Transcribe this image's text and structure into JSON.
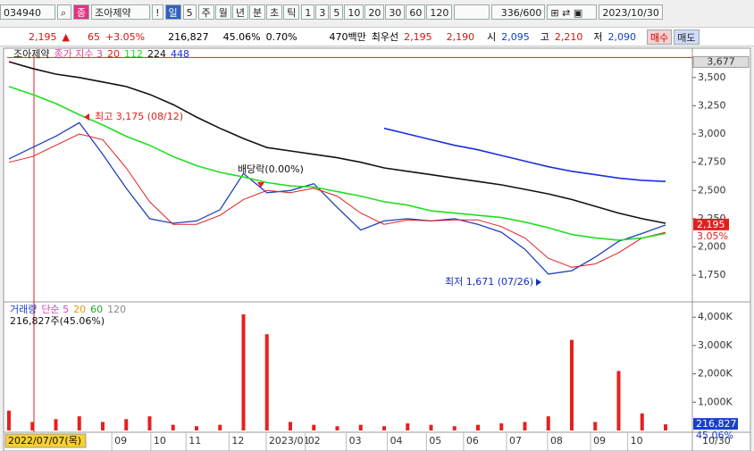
{
  "toolbar": {
    "code": "034940",
    "badge": "종",
    "name": "조아제약",
    "alert": "!",
    "period": "일",
    "period_count": "5",
    "tabs": [
      "주",
      "월",
      "년",
      "분",
      "초",
      "틱"
    ],
    "intervals": [
      "1",
      "3",
      "5",
      "10",
      "20",
      "30",
      "60",
      "120"
    ],
    "count": "336/600",
    "date": "2023/10/30"
  },
  "quote": {
    "price": "2,195",
    "arrow": "▲",
    "change": "65",
    "change_pct": "+3.05%",
    "volume": "216,827",
    "volume_ratio": "45.06%",
    "turnover": "0.70%",
    "trade_value": "470백만",
    "best_label": "최우선",
    "ask": "2,195",
    "bid": "2,190",
    "open_label": "시",
    "open": "2,095",
    "high_label": "고",
    "high": "2,210",
    "low_label": "저",
    "low": "2,090",
    "buy": "매수",
    "sell": "매도"
  },
  "chart_data": [
    {
      "type": "line",
      "title": "조아제약",
      "ma_label": "종가 지수 3",
      "x": [
        0,
        12,
        24,
        36,
        48,
        60,
        72,
        84,
        96,
        108,
        120,
        132,
        144,
        156,
        168,
        180,
        192,
        204,
        216,
        228,
        240,
        252,
        264,
        276,
        288,
        300,
        312,
        324,
        336
      ],
      "xlim": [
        0,
        336
      ],
      "series": [
        {
          "name": "조아제약",
          "color": "#2040c0",
          "values": [
            2780,
            2880,
            2980,
            3100,
            2820,
            2520,
            2250,
            2210,
            2230,
            2330,
            2650,
            2480,
            2500,
            2560,
            2350,
            2150,
            2230,
            2250,
            2230,
            2250,
            2200,
            2130,
            1980,
            1760,
            1790,
            1910,
            2050,
            2120,
            2195
          ]
        },
        {
          "name": "20",
          "color": "#e02020",
          "values": [
            2750,
            2800,
            2900,
            3000,
            2950,
            2700,
            2400,
            2200,
            2200,
            2280,
            2420,
            2500,
            2480,
            2520,
            2450,
            2300,
            2200,
            2240,
            2230,
            2240,
            2240,
            2180,
            2080,
            1900,
            1820,
            1850,
            1950,
            2080,
            2130
          ]
        },
        {
          "name": "112",
          "color": "#22dd22",
          "values": [
            3420,
            3350,
            3270,
            3170,
            3080,
            2980,
            2900,
            2800,
            2720,
            2660,
            2620,
            2570,
            2540,
            2530,
            2490,
            2450,
            2400,
            2370,
            2320,
            2300,
            2280,
            2260,
            2220,
            2170,
            2110,
            2080,
            2060,
            2080,
            2120
          ]
        },
        {
          "name": "224",
          "color": "#111111",
          "values": [
            3640,
            3580,
            3530,
            3500,
            3460,
            3420,
            3350,
            3260,
            3150,
            3050,
            2960,
            2880,
            2850,
            2820,
            2790,
            2750,
            2700,
            2670,
            2640,
            2610,
            2580,
            2550,
            2510,
            2470,
            2420,
            2360,
            2300,
            2250,
            2210
          ]
        },
        {
          "name": "448",
          "color": "#1a2ee0",
          "values": [
            null,
            null,
            null,
            null,
            null,
            null,
            null,
            null,
            null,
            null,
            null,
            null,
            null,
            null,
            null,
            null,
            3050,
            3000,
            2950,
            2900,
            2860,
            2810,
            2760,
            2710,
            2670,
            2640,
            2610,
            2590,
            2580
          ]
        }
      ],
      "ylim": [
        1530,
        3680
      ],
      "yticks": [
        {
          "value": 1750,
          "label": "1,750"
        },
        {
          "value": 2000,
          "label": "2,000"
        },
        {
          "value": 2250,
          "label": "2,250"
        },
        {
          "value": 2500,
          "label": "2,500"
        },
        {
          "value": 2750,
          "label": "2,750"
        },
        {
          "value": 3000,
          "label": "3,000"
        },
        {
          "value": 3250,
          "label": "3,250"
        },
        {
          "value": 3500,
          "label": "3,500"
        }
      ],
      "grid": false,
      "top_marker": {
        "value": 3677,
        "label": "3,677"
      },
      "last_marker": {
        "value": 2195,
        "label": "2,195"
      },
      "last_change": "3.05%",
      "annotations": [
        "최고 3,175 (08/12)",
        "배당락(0.00%)",
        "최저 1,671 (07/26)"
      ]
    },
    {
      "type": "bar",
      "title": "거래량",
      "legend": [
        {
          "label": "단순 5",
          "color": "#e040c0"
        },
        {
          "label": "20",
          "color": "#e0a000"
        },
        {
          "label": "60",
          "color": "#22aa22"
        },
        {
          "label": "120",
          "color": "#888888"
        }
      ],
      "subtitle": "216,827주(45.06%)",
      "x": [
        0,
        12,
        24,
        36,
        48,
        60,
        72,
        84,
        96,
        108,
        120,
        132,
        144,
        156,
        168,
        180,
        192,
        204,
        216,
        228,
        240,
        252,
        264,
        276,
        288,
        300,
        312,
        324,
        336
      ],
      "xlim": [
        0,
        336
      ],
      "color": "#e8201c",
      "values": [
        700000,
        300000,
        400000,
        500000,
        300000,
        400000,
        500000,
        200000,
        150000,
        200000,
        4100000,
        3400000,
        300000,
        200000,
        150000,
        200000,
        150000,
        250000,
        200000,
        150000,
        200000,
        250000,
        300000,
        500000,
        3200000,
        300000,
        2100000,
        600000,
        216827
      ],
      "ylim": [
        0,
        4480000
      ],
      "yticks": [
        {
          "value": 1000000,
          "label": "1,000K"
        },
        {
          "value": 2000000,
          "label": "2,000K"
        },
        {
          "value": 3000000,
          "label": "3,000K"
        },
        {
          "value": 4000000,
          "label": "4,000K"
        }
      ],
      "last_marker": {
        "value": 216827,
        "label": "216,827"
      },
      "last_ratio": "45.06%"
    }
  ],
  "x_axis": {
    "start_label": "2022/07/07(목)",
    "end_label": "10/30",
    "ticks": [
      {
        "value": 54,
        "label": "09"
      },
      {
        "value": 74,
        "label": "10"
      },
      {
        "value": 92,
        "label": "11"
      },
      {
        "value": 114,
        "label": "12"
      },
      {
        "value": 133,
        "label": "2023/01"
      },
      {
        "value": 153,
        "label": "02"
      },
      {
        "value": 174,
        "label": "03"
      },
      {
        "value": 195,
        "label": "04"
      },
      {
        "value": 215,
        "label": "05"
      },
      {
        "value": 234,
        "label": "06"
      },
      {
        "value": 256,
        "label": "07"
      },
      {
        "value": 277,
        "label": "08"
      },
      {
        "value": 299,
        "label": "09"
      },
      {
        "value": 318,
        "label": "10"
      }
    ]
  }
}
